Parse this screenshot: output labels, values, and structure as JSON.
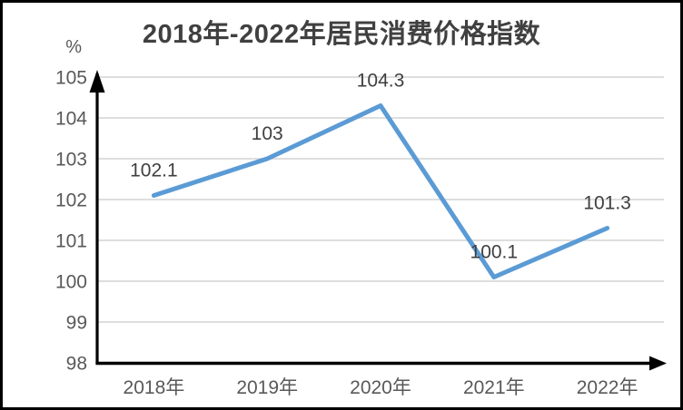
{
  "window": {
    "background": "#ffffff",
    "border_color": "#000000"
  },
  "chart_data": {
    "type": "line",
    "title": "2018年-2022年居民消费价格指数",
    "unit_label": "%",
    "categories": [
      "2018年",
      "2019年",
      "2020年",
      "2021年",
      "2022年"
    ],
    "series": [
      {
        "name": "居民消费价格指数",
        "values": [
          102.1,
          103,
          104.3,
          100.1,
          101.3
        ],
        "data_labels": [
          "102.1",
          "103",
          "104.3",
          "100.1",
          "101.3"
        ]
      }
    ],
    "ylim": [
      98,
      105
    ],
    "yticks": [
      98,
      99,
      100,
      101,
      102,
      103,
      104,
      105
    ],
    "grid": true,
    "legend_position": "none",
    "axis_arrows": true,
    "colors": {
      "line": "#5B9BD5",
      "grid": "#DADADA",
      "axis": "#000000",
      "tick_text": "#595959",
      "data_label_text": "#3F3F3F",
      "title_text": "#404040"
    }
  }
}
